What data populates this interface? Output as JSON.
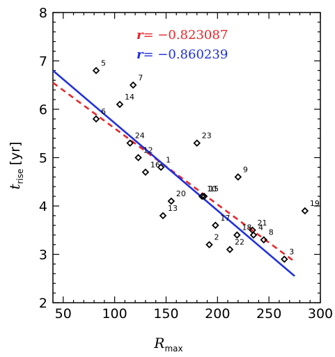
{
  "chart_data": {
    "type": "scatter",
    "xlim": [
      40,
      300
    ],
    "ylim": [
      2,
      8
    ],
    "x_ticks": [
      50,
      100,
      150,
      200,
      250,
      300
    ],
    "y_ticks": [
      2,
      3,
      4,
      5,
      6,
      7,
      8
    ],
    "xlabel": {
      "main": "R",
      "sub": "max",
      "unit": ""
    },
    "ylabel": {
      "main": "t",
      "sub": "rise",
      "unit": "[yr]"
    },
    "points": [
      {
        "label": "5",
        "x": 82,
        "y": 6.8
      },
      {
        "label": "7",
        "x": 118,
        "y": 6.5
      },
      {
        "label": "14",
        "x": 105,
        "y": 6.1
      },
      {
        "label": "6",
        "x": 82,
        "y": 5.8
      },
      {
        "label": "24",
        "x": 115,
        "y": 5.3
      },
      {
        "label": "23",
        "x": 180,
        "y": 5.3
      },
      {
        "label": "12",
        "x": 123,
        "y": 5.0
      },
      {
        "label": "16",
        "x": 130,
        "y": 4.7
      },
      {
        "label": "1",
        "x": 145,
        "y": 4.8
      },
      {
        "label": "9",
        "x": 220,
        "y": 4.6
      },
      {
        "label": "15",
        "x": 187,
        "y": 4.2
      },
      {
        "label": "10",
        "x": 185,
        "y": 4.2
      },
      {
        "label": "20",
        "x": 155,
        "y": 4.1
      },
      {
        "label": "13",
        "x": 147,
        "y": 3.8
      },
      {
        "label": "19",
        "x": 285,
        "y": 3.9
      },
      {
        "label": "17",
        "x": 198,
        "y": 3.6
      },
      {
        "label": "21",
        "x": 234,
        "y": 3.5
      },
      {
        "label": "18",
        "x": 219,
        "y": 3.4
      },
      {
        "label": "4",
        "x": 235,
        "y": 3.4
      },
      {
        "label": "8",
        "x": 245,
        "y": 3.3
      },
      {
        "label": "2",
        "x": 192,
        "y": 3.2
      },
      {
        "label": "22",
        "x": 212,
        "y": 3.1
      },
      {
        "label": "3",
        "x": 265,
        "y": 2.9
      }
    ],
    "fits": [
      {
        "style": "dashed",
        "color": "#e8262a",
        "x": [
          40,
          275
        ],
        "y": [
          6.55,
          2.85
        ]
      },
      {
        "style": "solid",
        "color": "#1f2fe0",
        "x": [
          40,
          275
        ],
        "y": [
          6.8,
          2.55
        ]
      }
    ],
    "annotations": [
      {
        "prefix": "r",
        "eq": "= ",
        "value": "−0.823087",
        "color": "#e8262a"
      },
      {
        "prefix": "r",
        "eq": "= ",
        "value": "−0.860239",
        "color": "#1f2fe0"
      }
    ]
  }
}
